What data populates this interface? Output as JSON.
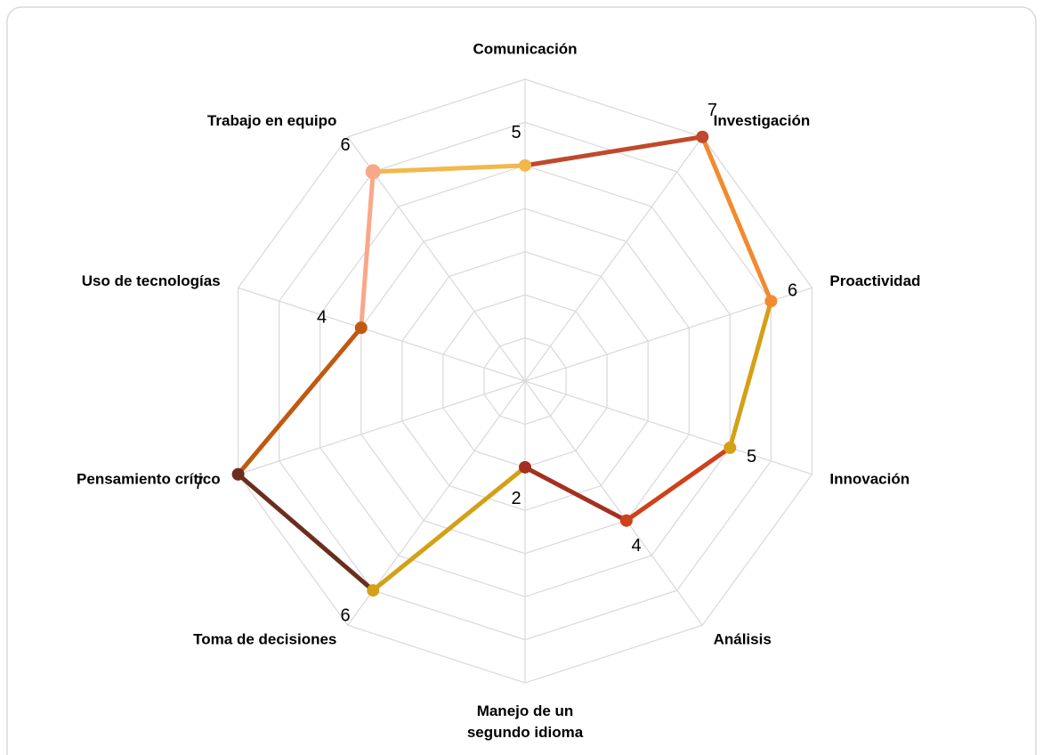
{
  "chart_data": {
    "type": "radar",
    "categories": [
      "Comunicación",
      "Investigación",
      "Proactividad",
      "Innovación",
      "Análisis",
      "Manejo de un segundo idioma",
      "Toma de decisiones",
      "Pensamiento crítico",
      "Uso de tecnologías",
      "Trabajo en equipo"
    ],
    "values": [
      5,
      7,
      6,
      5,
      4,
      2,
      6,
      7,
      4,
      6
    ],
    "colors": [
      "#f2b84b",
      "#c0492b",
      "#f28a30",
      "#d4a017",
      "#d0401a",
      "#a33020",
      "#d4a017",
      "#6b2e1e",
      "#c05a10",
      "#f8a888"
    ],
    "ylim": [
      0,
      7
    ],
    "yticks": [
      0,
      1,
      2,
      3,
      4,
      5,
      6,
      7
    ],
    "grid": true
  }
}
